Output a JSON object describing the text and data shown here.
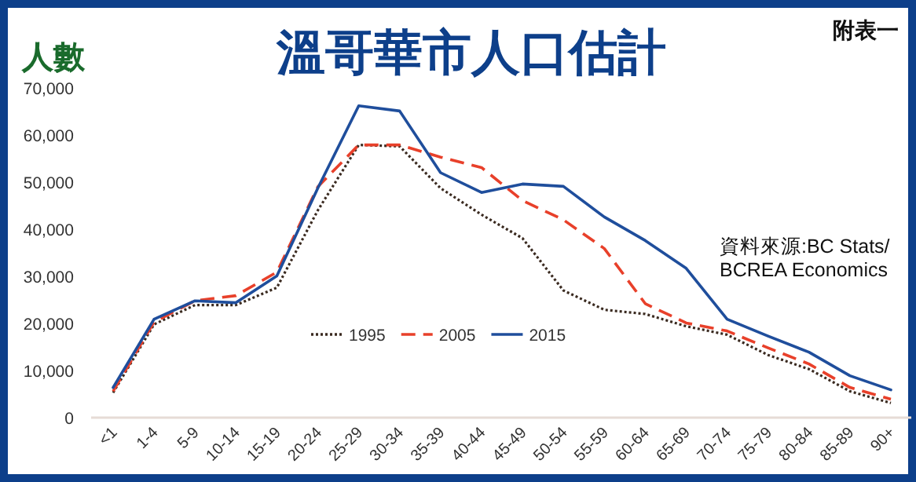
{
  "chart_data": {
    "type": "line",
    "title": "溫哥華市人口估計",
    "ylabel": "人數",
    "annotations": [
      "附表一",
      "資料來源:BC Stats/\nBCREA Economics"
    ],
    "categories": [
      "<1",
      "1-4",
      "5-9",
      "10-14",
      "15-19",
      "20-24",
      "25-29",
      "30-34",
      "35-39",
      "40-44",
      "45-49",
      "50-54",
      "55-59",
      "60-64",
      "65-69",
      "70-74",
      "75-79",
      "80-84",
      "85-89",
      "90+"
    ],
    "series": [
      {
        "name": "1995",
        "color": "#3a2a20",
        "line_style": "dotted",
        "values": [
          5300,
          19800,
          23900,
          23900,
          27600,
          44000,
          57900,
          57600,
          48700,
          43100,
          38100,
          27000,
          22900,
          22000,
          19400,
          17600,
          13300,
          10300,
          5600,
          3100
        ]
      },
      {
        "name": "2005",
        "color": "#e8402a",
        "line_style": "dashed",
        "values": [
          5600,
          20300,
          24800,
          25900,
          30900,
          49000,
          57900,
          57900,
          55300,
          53100,
          46100,
          42000,
          35900,
          24200,
          20100,
          18400,
          14800,
          11400,
          6400,
          3900
        ]
      },
      {
        "name": "2015",
        "color": "#1f4e9c",
        "line_style": "solid",
        "values": [
          6400,
          20900,
          24800,
          24400,
          30100,
          48700,
          66200,
          65100,
          52000,
          47800,
          49600,
          49100,
          42600,
          37600,
          31700,
          20900,
          17300,
          13900,
          8900,
          5900
        ]
      }
    ],
    "ylim": [
      0,
      70000
    ],
    "yticks": [
      0,
      {
        "value": 10000,
        "label": "10,000"
      },
      {
        "value": 20000,
        "label": "20,000"
      },
      {
        "value": 30000,
        "label": "30,000"
      },
      {
        "value": 40000,
        "label": "40,000"
      },
      {
        "value": 50000,
        "label": "50,000"
      },
      {
        "value": 60000,
        "label": "60,000"
      },
      {
        "value": 70000,
        "label": "70,000"
      }
    ],
    "grid": false,
    "legend": "bottom",
    "marker": "none"
  }
}
